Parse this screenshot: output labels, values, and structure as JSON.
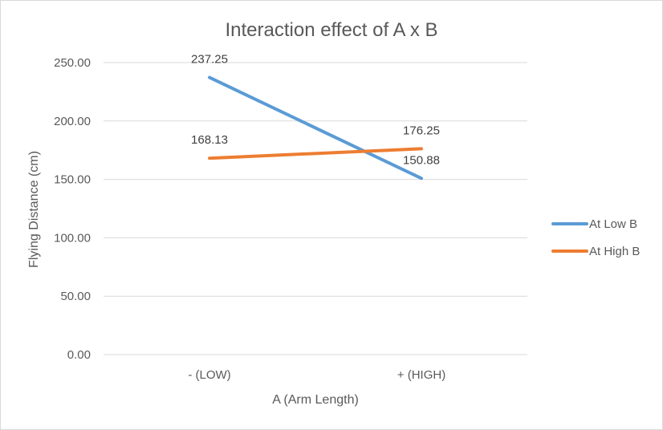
{
  "chart_data": {
    "type": "line",
    "title": "Interaction effect of A x B",
    "xlabel": "A (Arm Length)",
    "ylabel": "Flying Distance (cm)",
    "categories": [
      "- (LOW)",
      "+ (HIGH)"
    ],
    "ylim": [
      0,
      250
    ],
    "yticks": [
      "0.00",
      "50.00",
      "100.00",
      "150.00",
      "200.00",
      "250.00"
    ],
    "grid": true,
    "legend_position": "right",
    "series": [
      {
        "name": "At Low B",
        "color": "#5b9bd5",
        "values": [
          237.25,
          150.88
        ],
        "labels": [
          "237.25",
          "150.88"
        ]
      },
      {
        "name": "At High B",
        "color": "#ed7d31",
        "values": [
          168.13,
          176.25
        ],
        "labels": [
          "168.13",
          "176.25"
        ]
      }
    ]
  }
}
